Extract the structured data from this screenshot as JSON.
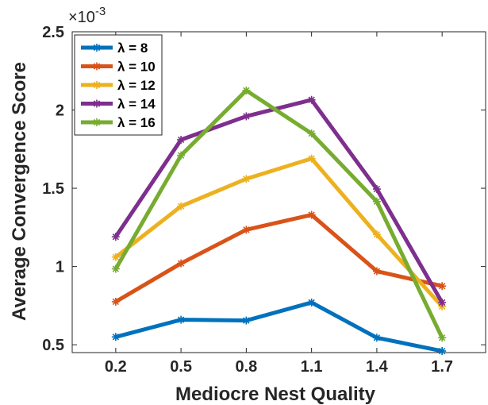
{
  "chart_data": {
    "type": "line",
    "title": "",
    "xlabel": "Mediocre Nest Quality",
    "ylabel": "Average Convergence Score",
    "x": [
      0.2,
      0.5,
      0.8,
      1.1,
      1.4,
      1.7
    ],
    "x_tick_labels": [
      "0.2",
      "0.5",
      "0.8",
      "1.1",
      "1.4",
      "1.7"
    ],
    "xlim": [
      0,
      1.9
    ],
    "ylim": [
      0.45,
      2.5
    ],
    "y_ticks": [
      0.5,
      1,
      1.5,
      2,
      2.5
    ],
    "y_tick_labels": [
      "0.5",
      "1",
      "1.5",
      "2",
      "2.5"
    ],
    "y_exponent": {
      "base": "×10",
      "power": "-3"
    },
    "grid": false,
    "legend_placement": "top-left",
    "series": [
      {
        "name": "λ = 8",
        "color": "#0072BD",
        "values": [
          0.55,
          0.66,
          0.655,
          0.77,
          0.545,
          0.46
        ]
      },
      {
        "name": "λ = 10",
        "color": "#D95319",
        "values": [
          0.775,
          1.02,
          1.235,
          1.33,
          0.97,
          0.875
        ]
      },
      {
        "name": "λ = 12",
        "color": "#EDB120",
        "values": [
          1.06,
          1.385,
          1.56,
          1.69,
          1.205,
          0.745
        ]
      },
      {
        "name": "λ = 14",
        "color": "#7E2F8E",
        "values": [
          1.19,
          1.81,
          1.96,
          2.065,
          1.495,
          0.77
        ]
      },
      {
        "name": "λ = 16",
        "color": "#77AC30",
        "values": [
          0.985,
          1.71,
          2.125,
          1.85,
          1.415,
          0.545
        ]
      }
    ]
  }
}
